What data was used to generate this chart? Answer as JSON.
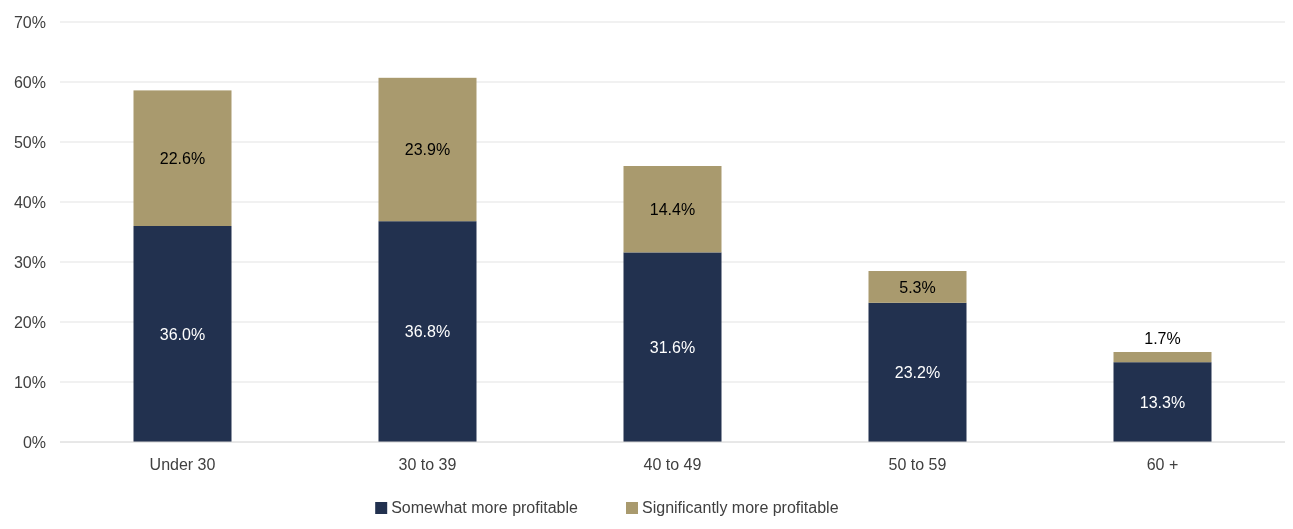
{
  "chart_data": {
    "type": "bar",
    "stacked": true,
    "categories": [
      "Under 30",
      "30 to 39",
      "40 to 49",
      "50 to 59",
      "60 +"
    ],
    "series": [
      {
        "name": "Somewhat more profitable",
        "color": "#22314f",
        "values": [
          36.0,
          36.8,
          31.6,
          23.2,
          13.3
        ],
        "value_labels": [
          "36.0%",
          "36.8%",
          "31.6%",
          "23.2%",
          "13.3%"
        ]
      },
      {
        "name": "Significantly more profitable",
        "color": "#a99a6e",
        "values": [
          22.6,
          23.9,
          14.4,
          5.3,
          1.7
        ],
        "value_labels": [
          "22.6%",
          "23.9%",
          "14.4%",
          "5.3%",
          "1.7%"
        ]
      }
    ],
    "ylim": [
      0,
      70
    ],
    "yticks": [
      {
        "value": 0,
        "label": "0%"
      },
      {
        "value": 10,
        "label": "10%"
      },
      {
        "value": 20,
        "label": "20%"
      },
      {
        "value": 30,
        "label": "30%"
      },
      {
        "value": 40,
        "label": "40%"
      },
      {
        "value": 50,
        "label": "50%"
      },
      {
        "value": 60,
        "label": "60%"
      },
      {
        "value": 70,
        "label": "70%"
      }
    ],
    "grid": "y",
    "legend": "bottom"
  }
}
